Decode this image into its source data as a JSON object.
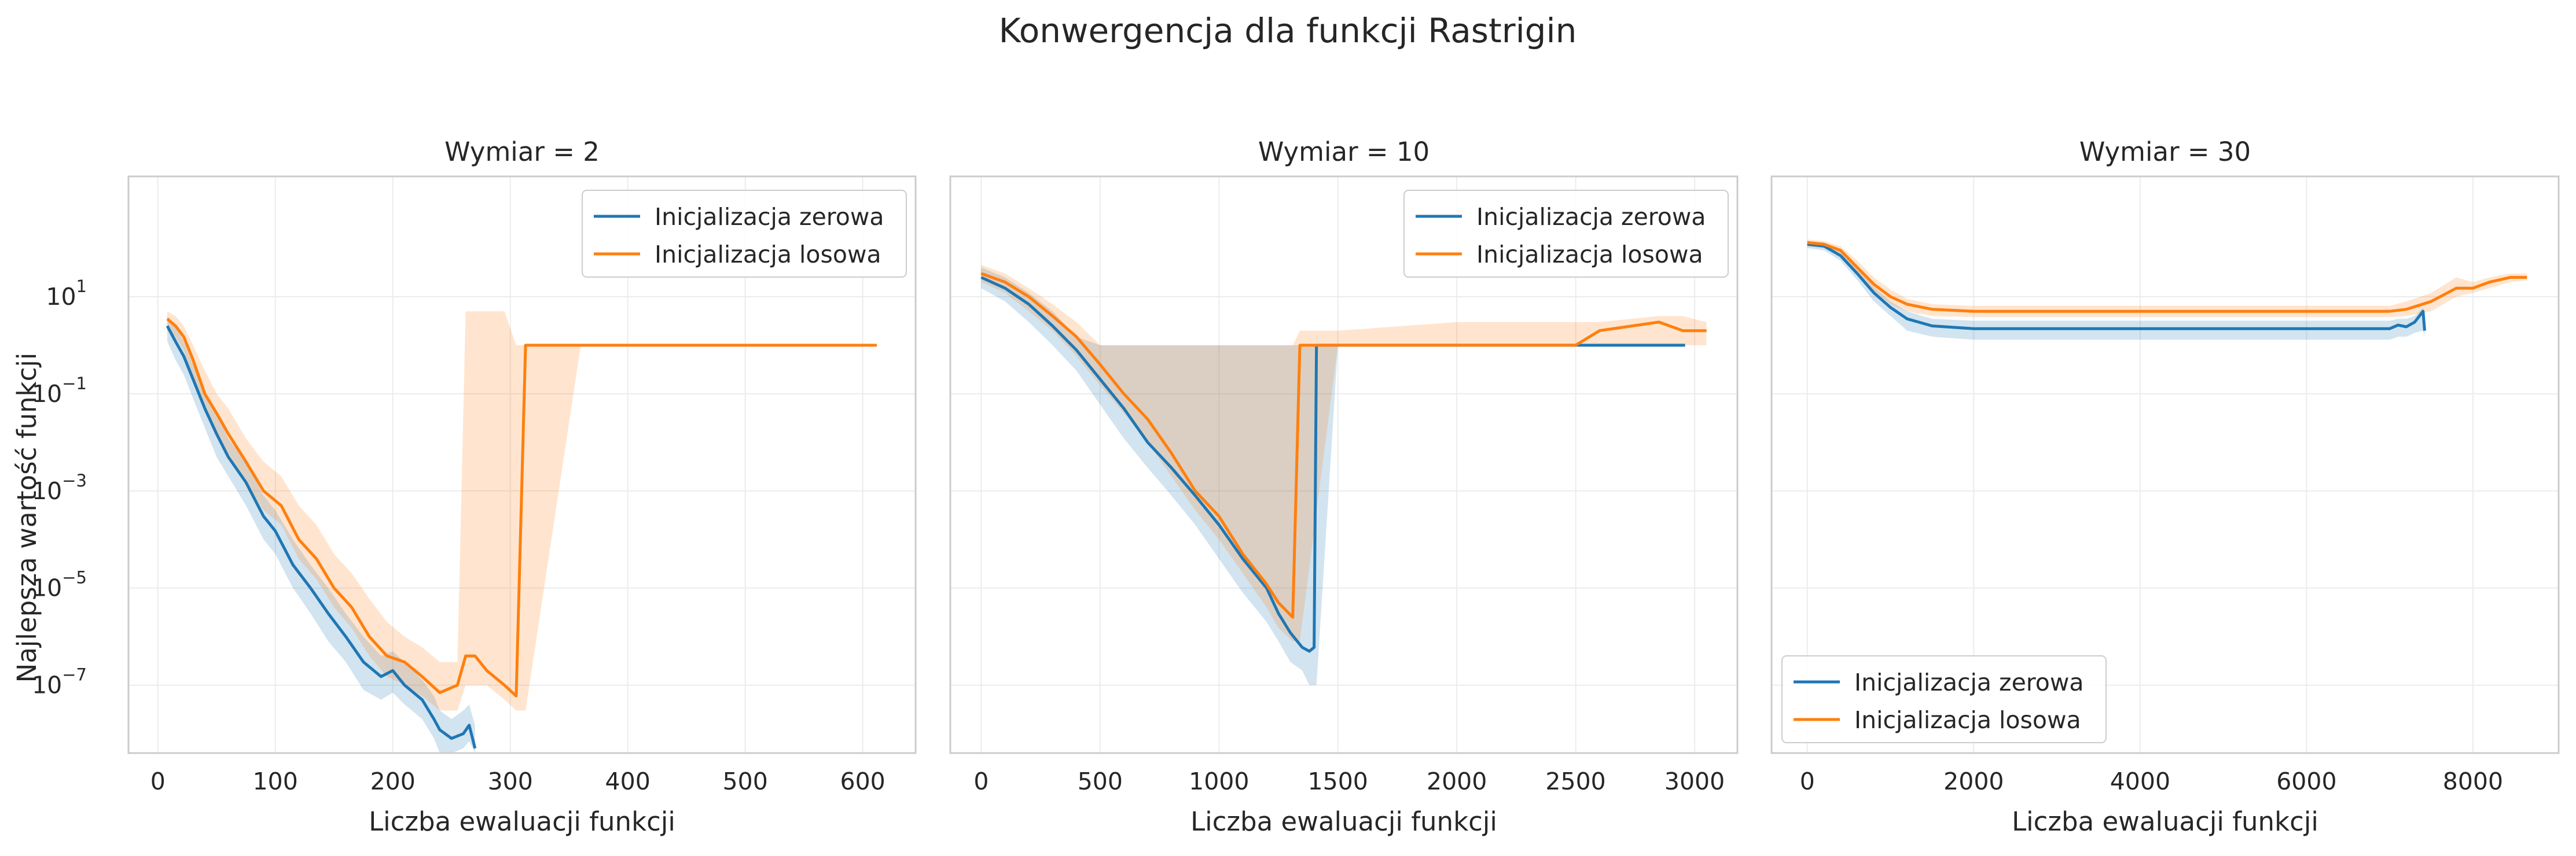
{
  "figure": {
    "title": "Konwergencja dla funkcji Rastrigin"
  },
  "colors": {
    "zero": "#1f77b4",
    "random": "#ff7f0e",
    "grid": "#ececec",
    "frame": "#cccccc",
    "text": "#262626"
  },
  "chart_data": [
    {
      "type": "line",
      "title": "Wymiar = 2",
      "xlabel": "Liczba ewaluacji funkcji",
      "ylabel": "Najlepsza wartość funkcji",
      "yscale": "log",
      "xlim": [
        -25,
        645
      ],
      "ylim": [
        4e-09,
        3000
      ],
      "xticks": [
        0,
        100,
        200,
        300,
        400,
        500,
        600
      ],
      "yticks": [
        {
          "base": "10",
          "exp": "1",
          "v": 10
        },
        {
          "base": "10",
          "exp": "−1",
          "v": 0.1
        },
        {
          "base": "10",
          "exp": "−3",
          "v": 0.001
        },
        {
          "base": "10",
          "exp": "−5",
          "v": 1e-05
        },
        {
          "base": "10",
          "exp": "−7",
          "v": 1e-07
        }
      ],
      "legend": {
        "position": "upper right",
        "entries": [
          "Inicjalizacja zerowa",
          "Inicjalizacja losowa"
        ]
      },
      "series": [
        {
          "name": "Inicjalizacja zerowa",
          "color": "#1f77b4",
          "points": [
            [
              8,
              2.5
            ],
            [
              15,
              1.2
            ],
            [
              22,
              0.6
            ],
            [
              30,
              0.2
            ],
            [
              40,
              0.05
            ],
            [
              50,
              0.015
            ],
            [
              60,
              0.005
            ],
            [
              75,
              0.0015
            ],
            [
              90,
              0.0003
            ],
            [
              100,
              0.00015
            ],
            [
              115,
              3e-05
            ],
            [
              130,
              1e-05
            ],
            [
              145,
              3e-06
            ],
            [
              160,
              1e-06
            ],
            [
              175,
              3e-07
            ],
            [
              190,
              1.5e-07
            ],
            [
              200,
              2e-07
            ],
            [
              210,
              1e-07
            ],
            [
              225,
              5e-08
            ],
            [
              235,
              2e-08
            ],
            [
              240,
              1.2e-08
            ],
            [
              250,
              8e-09
            ],
            [
              260,
              1e-08
            ],
            [
              265,
              1.5e-08
            ],
            [
              270,
              5e-09
            ]
          ],
          "band_low": [
            1.2,
            0.5,
            0.25,
            0.08,
            0.02,
            0.005,
            0.002,
            0.0005,
            0.0001,
            5e-05,
            1e-05,
            3e-06,
            8e-07,
            3e-07,
            8e-08,
            5e-08,
            7e-08,
            4e-08,
            2e-08,
            8e-09,
            4e-09,
            4e-09,
            5e-09,
            7e-09,
            4e-09
          ],
          "band_high": [
            4,
            2.5,
            1.2,
            0.4,
            0.1,
            0.04,
            0.012,
            0.004,
            0.0008,
            0.0004,
            0.0001,
            3e-05,
            1e-05,
            3e-06,
            1e-06,
            4e-07,
            5e-07,
            3e-07,
            1.3e-07,
            6e-08,
            3e-08,
            2e-08,
            3e-08,
            4e-08,
            1.5e-08
          ]
        },
        {
          "name": "Inicjalizacja losowa",
          "color": "#ff7f0e",
          "points": [
            [
              8,
              3.5
            ],
            [
              15,
              2.5
            ],
            [
              22,
              1.5
            ],
            [
              30,
              0.5
            ],
            [
              40,
              0.1
            ],
            [
              50,
              0.04
            ],
            [
              60,
              0.015
            ],
            [
              75,
              0.004
            ],
            [
              90,
              0.001
            ],
            [
              105,
              0.0005
            ],
            [
              120,
              0.0001
            ],
            [
              135,
              4e-05
            ],
            [
              150,
              1e-05
            ],
            [
              165,
              4e-06
            ],
            [
              180,
              1e-06
            ],
            [
              195,
              4e-07
            ],
            [
              210,
              3e-07
            ],
            [
              225,
              1.5e-07
            ],
            [
              240,
              7e-08
            ],
            [
              255,
              1e-07
            ],
            [
              262,
              4e-07
            ],
            [
              270,
              4e-07
            ],
            [
              280,
              2e-07
            ],
            [
              295,
              1e-07
            ],
            [
              305,
              6e-08
            ],
            [
              313,
              1.0
            ],
            [
              360,
              1.0
            ],
            [
              450,
              1.0
            ],
            [
              550,
              1.0
            ],
            [
              612,
              1.0
            ]
          ],
          "band_low": [
            2,
            1.5,
            0.8,
            0.2,
            0.05,
            0.015,
            0.006,
            0.0015,
            0.0004,
            0.0002,
            4e-05,
            1.5e-05,
            4e-06,
            1.5e-06,
            4e-07,
            1.5e-07,
            1e-07,
            6e-08,
            3e-08,
            3e-08,
            1e-07,
            1e-07,
            1e-07,
            5e-08,
            3e-08,
            3e-08,
            1.0,
            1.0,
            1.0,
            1.0
          ],
          "band_high": [
            5,
            4,
            2.5,
            1,
            0.3,
            0.1,
            0.05,
            0.012,
            0.004,
            0.002,
            0.0005,
            0.0002,
            5e-05,
            2e-05,
            6e-06,
            2e-06,
            1e-06,
            6e-07,
            3e-07,
            3e-07,
            5,
            5,
            5,
            5,
            1.0,
            1.0,
            1.0,
            1.0,
            1.0,
            1.0
          ]
        }
      ]
    },
    {
      "type": "line",
      "title": "Wymiar = 10",
      "xlabel": "Liczba ewaluacji funkcji",
      "yscale": "log",
      "xlim": [
        -130,
        3180
      ],
      "ylim": [
        4e-09,
        3000
      ],
      "xticks": [
        0,
        500,
        1000,
        1500,
        2000,
        2500,
        3000
      ],
      "legend": {
        "position": "upper right",
        "entries": [
          "Inicjalizacja zerowa",
          "Inicjalizacja losowa"
        ]
      },
      "series": [
        {
          "name": "Inicjalizacja zerowa",
          "color": "#1f77b4",
          "points": [
            [
              0,
              25
            ],
            [
              100,
              15
            ],
            [
              200,
              7
            ],
            [
              300,
              2.5
            ],
            [
              400,
              0.8
            ],
            [
              500,
              0.2
            ],
            [
              600,
              0.05
            ],
            [
              700,
              0.01
            ],
            [
              800,
              0.003
            ],
            [
              900,
              0.0008
            ],
            [
              1000,
              0.0002
            ],
            [
              1100,
              4e-05
            ],
            [
              1200,
              1e-05
            ],
            [
              1250,
              3e-06
            ],
            [
              1300,
              1.2e-06
            ],
            [
              1350,
              6e-07
            ],
            [
              1380,
              5e-07
            ],
            [
              1400,
              6e-07
            ],
            [
              1410,
              1.0
            ],
            [
              1500,
              1.0
            ],
            [
              2000,
              1.0
            ],
            [
              2500,
              1.0
            ],
            [
              2960,
              1.0
            ]
          ],
          "band_low": [
            15,
            8,
            3,
            1,
            0.3,
            0.06,
            0.012,
            0.003,
            0.0008,
            0.0002,
            4e-05,
            8e-06,
            2e-06,
            8e-07,
            3e-07,
            2e-07,
            1e-07,
            1e-07,
            1e-07,
            1.0,
            1.0,
            1.0,
            1.0
          ],
          "band_high": [
            40,
            25,
            12,
            5,
            1.5,
            1,
            1,
            1,
            1,
            1,
            1,
            1,
            1,
            1,
            1,
            1,
            1,
            1,
            1,
            1.0,
            1.0,
            1.0,
            1.0
          ]
        },
        {
          "name": "Inicjalizacja losowa",
          "color": "#ff7f0e",
          "points": [
            [
              0,
              30
            ],
            [
              100,
              20
            ],
            [
              200,
              10
            ],
            [
              300,
              4
            ],
            [
              400,
              1.5
            ],
            [
              500,
              0.4
            ],
            [
              600,
              0.1
            ],
            [
              700,
              0.03
            ],
            [
              800,
              0.006
            ],
            [
              900,
              0.001
            ],
            [
              1000,
              0.0003
            ],
            [
              1100,
              5e-05
            ],
            [
              1200,
              1.2e-05
            ],
            [
              1250,
              5e-06
            ],
            [
              1310,
              2.5e-06
            ],
            [
              1340,
              1.0
            ],
            [
              1500,
              1.0
            ],
            [
              2000,
              1.0
            ],
            [
              2500,
              1.0
            ],
            [
              2600,
              2
            ],
            [
              2850,
              3
            ],
            [
              2950,
              2
            ],
            [
              3050,
              2
            ]
          ],
          "band_low": [
            20,
            12,
            5,
            2,
            0.6,
            0.15,
            0.04,
            0.01,
            0.002,
            0.0004,
            0.0001,
            2e-05,
            4e-06,
            1.5e-06,
            8e-07,
            8e-07,
            1.0,
            1.0,
            1.0,
            1.0,
            1.0,
            1.0,
            1.0
          ],
          "band_high": [
            45,
            30,
            15,
            7,
            3,
            1,
            1,
            1,
            1,
            1,
            1,
            1,
            1,
            1,
            1,
            2,
            2,
            3,
            3,
            3,
            4,
            4,
            3
          ]
        }
      ]
    },
    {
      "type": "line",
      "title": "Wymiar = 30",
      "xlabel": "Liczba ewaluacji funkcji",
      "yscale": "log",
      "xlim": [
        -430,
        9030
      ],
      "ylim": [
        4e-09,
        3000
      ],
      "xticks": [
        0,
        2000,
        4000,
        6000,
        8000
      ],
      "legend": {
        "position": "lower left",
        "entries": [
          "Inicjalizacja zerowa",
          "Inicjalizacja losowa"
        ]
      },
      "series": [
        {
          "name": "Inicjalizacja zerowa",
          "color": "#1f77b4",
          "points": [
            [
              0,
              120
            ],
            [
              200,
              110
            ],
            [
              400,
              70
            ],
            [
              600,
              30
            ],
            [
              800,
              12
            ],
            [
              1000,
              6
            ],
            [
              1200,
              3.5
            ],
            [
              1500,
              2.5
            ],
            [
              2000,
              2.2
            ],
            [
              3000,
              2.2
            ],
            [
              4000,
              2.2
            ],
            [
              5000,
              2.2
            ],
            [
              6000,
              2.2
            ],
            [
              7000,
              2.2
            ],
            [
              7100,
              2.6
            ],
            [
              7200,
              2.4
            ],
            [
              7300,
              3
            ],
            [
              7400,
              5
            ],
            [
              7420,
              2
            ]
          ],
          "band_low": [
            100,
            90,
            55,
            22,
            8,
            4,
            2,
            1.5,
            1.3,
            1.3,
            1.3,
            1.3,
            1.3,
            1.3,
            1.5,
            1.5,
            1.8,
            2,
            1.5
          ],
          "band_high": [
            140,
            130,
            90,
            40,
            16,
            8,
            5,
            3.5,
            3.2,
            3.2,
            3.2,
            3.2,
            3.2,
            3.2,
            3.5,
            3.5,
            4,
            6,
            3
          ]
        },
        {
          "name": "Inicjalizacja losowa",
          "color": "#ff7f0e",
          "points": [
            [
              0,
              130
            ],
            [
              200,
              120
            ],
            [
              400,
              90
            ],
            [
              600,
              40
            ],
            [
              800,
              18
            ],
            [
              1000,
              10
            ],
            [
              1200,
              7
            ],
            [
              1500,
              5.5
            ],
            [
              2000,
              5
            ],
            [
              3000,
              5
            ],
            [
              4000,
              5
            ],
            [
              5000,
              5
            ],
            [
              6000,
              5
            ],
            [
              7000,
              5
            ],
            [
              7200,
              5.5
            ],
            [
              7500,
              8
            ],
            [
              7800,
              15
            ],
            [
              8000,
              15
            ],
            [
              8200,
              20
            ],
            [
              8450,
              25
            ],
            [
              8650,
              25
            ]
          ],
          "band_low": [
            110,
            100,
            70,
            30,
            13,
            7,
            5,
            4,
            3.8,
            3.8,
            3.8,
            3.8,
            3.8,
            3.8,
            4,
            5,
            10,
            12,
            15,
            20,
            22
          ],
          "band_high": [
            150,
            140,
            110,
            55,
            25,
            14,
            9,
            7,
            6.5,
            6.5,
            6.5,
            6.5,
            6.5,
            6.5,
            8,
            12,
            25,
            20,
            25,
            30,
            30
          ]
        }
      ]
    }
  ]
}
